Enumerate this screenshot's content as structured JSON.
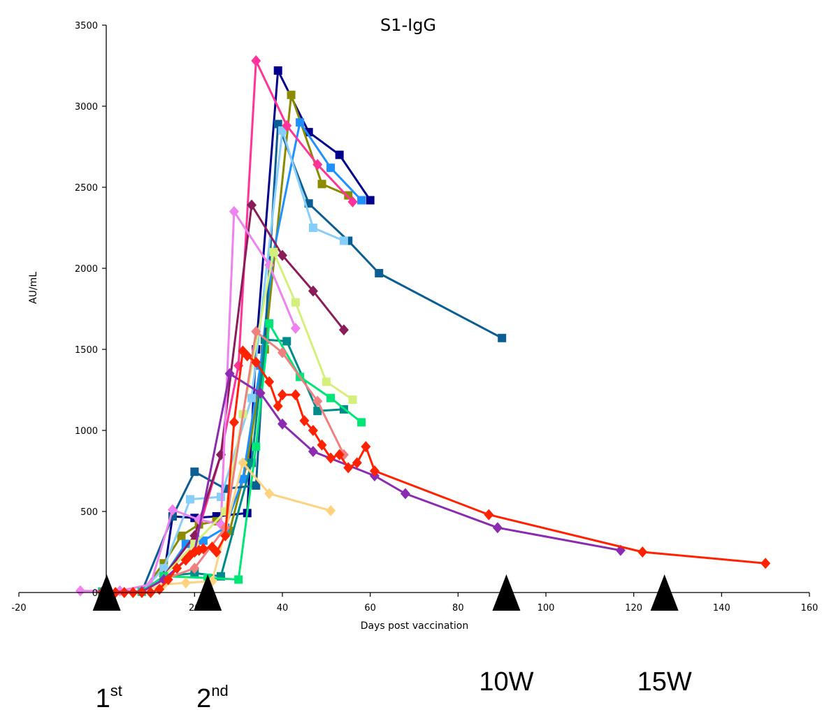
{
  "chart_data": {
    "type": "line",
    "title": "S1-IgG",
    "xlabel": "Days post vaccination",
    "ylabel": "AU/mL",
    "xlim": [
      -20,
      160
    ],
    "ylim": [
      0,
      3500
    ],
    "xticks": [
      -20,
      0,
      20,
      40,
      60,
      80,
      100,
      120,
      140,
      160
    ],
    "yticks": [
      0,
      500,
      1000,
      1500,
      2000,
      2500,
      3000,
      3500
    ],
    "grid": false,
    "legend": "none",
    "series": [
      {
        "color": "#00008B",
        "marker": "square",
        "points": [
          [
            -1,
            5
          ],
          [
            8,
            5
          ],
          [
            13,
            100
          ],
          [
            15,
            470
          ],
          [
            20,
            460
          ],
          [
            25,
            470
          ],
          [
            32,
            490
          ],
          [
            34,
            1500
          ],
          [
            39,
            3220
          ],
          [
            46,
            2840
          ],
          [
            53,
            2700
          ],
          [
            60,
            2420
          ]
        ]
      },
      {
        "color": "#8B8B00",
        "marker": "square",
        "points": [
          [
            -1,
            5
          ],
          [
            8,
            5
          ],
          [
            13,
            180
          ],
          [
            17,
            350
          ],
          [
            21,
            420
          ],
          [
            25,
            440
          ],
          [
            28,
            380
          ],
          [
            32,
            800
          ],
          [
            36,
            1500
          ],
          [
            42,
            3070
          ],
          [
            49,
            2520
          ],
          [
            55,
            2450
          ]
        ]
      },
      {
        "color": "#1E90FF",
        "marker": "square",
        "points": [
          [
            -1,
            5
          ],
          [
            8,
            5
          ],
          [
            13,
            100
          ],
          [
            18,
            300
          ],
          [
            22,
            320
          ],
          [
            27,
            400
          ],
          [
            31,
            700
          ],
          [
            35,
            1400
          ],
          [
            38,
            2100
          ],
          [
            44,
            2900
          ],
          [
            51,
            2620
          ],
          [
            58,
            2420
          ]
        ]
      },
      {
        "color": "#0B5E94",
        "marker": "square",
        "points": [
          [
            -1,
            5
          ],
          [
            8,
            5
          ],
          [
            15,
            470
          ],
          [
            20,
            745
          ],
          [
            27,
            640
          ],
          [
            34,
            660
          ],
          [
            39,
            2890
          ],
          [
            46,
            2400
          ],
          [
            55,
            2170
          ],
          [
            62,
            1970
          ],
          [
            90,
            1570
          ]
        ]
      },
      {
        "color": "#87CEFA",
        "marker": "square",
        "points": [
          [
            -1,
            5
          ],
          [
            8,
            5
          ],
          [
            13,
            150
          ],
          [
            19,
            575
          ],
          [
            26,
            590
          ],
          [
            33,
            1200
          ],
          [
            40,
            2850
          ],
          [
            47,
            2250
          ],
          [
            54,
            2170
          ]
        ]
      },
      {
        "color": "#FF3399",
        "marker": "diamond",
        "points": [
          [
            -1,
            5
          ],
          [
            8,
            5
          ],
          [
            13,
            100
          ],
          [
            20,
            300
          ],
          [
            26,
            850
          ],
          [
            30,
            1400
          ],
          [
            34,
            3280
          ],
          [
            41,
            2880
          ],
          [
            48,
            2640
          ],
          [
            56,
            2410
          ]
        ]
      },
      {
        "color": "#8B1C5A",
        "marker": "diamond",
        "points": [
          [
            -1,
            5
          ],
          [
            8,
            5
          ],
          [
            13,
            100
          ],
          [
            20,
            350
          ],
          [
            26,
            850
          ],
          [
            33,
            2390
          ],
          [
            40,
            2080
          ],
          [
            47,
            1860
          ],
          [
            54,
            1620
          ]
        ]
      },
      {
        "color": "#EE82EE",
        "marker": "diamond",
        "points": [
          [
            -6,
            10
          ],
          [
            3,
            10
          ],
          [
            10,
            50
          ],
          [
            15,
            510
          ],
          [
            21,
            450
          ],
          [
            26,
            420
          ],
          [
            29,
            2350
          ],
          [
            37,
            2020
          ],
          [
            43,
            1630
          ]
        ]
      },
      {
        "color": "#D4F07A",
        "marker": "square",
        "points": [
          [
            -1,
            5
          ],
          [
            8,
            5
          ],
          [
            13,
            100
          ],
          [
            20,
            300
          ],
          [
            27,
            500
          ],
          [
            31,
            1100
          ],
          [
            38,
            2100
          ],
          [
            43,
            1790
          ],
          [
            50,
            1300
          ],
          [
            56,
            1190
          ]
        ]
      },
      {
        "color": "#008B8B",
        "marker": "square",
        "points": [
          [
            -1,
            5
          ],
          [
            8,
            5
          ],
          [
            13,
            100
          ],
          [
            20,
            120
          ],
          [
            26,
            100
          ],
          [
            33,
            800
          ],
          [
            36,
            1560
          ],
          [
            41,
            1550
          ],
          [
            48,
            1120
          ],
          [
            54,
            1130
          ]
        ]
      },
      {
        "color": "#00E676",
        "marker": "square",
        "points": [
          [
            -1,
            5
          ],
          [
            8,
            5
          ],
          [
            13,
            100
          ],
          [
            23,
            90
          ],
          [
            30,
            80
          ],
          [
            34,
            900
          ],
          [
            37,
            1660
          ],
          [
            44,
            1330
          ],
          [
            51,
            1200
          ],
          [
            58,
            1050
          ]
        ]
      },
      {
        "color": "#F08080",
        "marker": "diamond",
        "points": [
          [
            -1,
            5
          ],
          [
            8,
            5
          ],
          [
            13,
            80
          ],
          [
            20,
            150
          ],
          [
            27,
            400
          ],
          [
            34,
            1610
          ],
          [
            40,
            1480
          ],
          [
            48,
            1180
          ],
          [
            54,
            850
          ]
        ]
      },
      {
        "color": "#FFD27F",
        "marker": "diamond",
        "points": [
          [
            -1,
            5
          ],
          [
            8,
            5
          ],
          [
            13,
            50
          ],
          [
            18,
            60
          ],
          [
            24,
            70
          ],
          [
            31,
            800
          ],
          [
            37,
            610
          ],
          [
            51,
            505
          ]
        ]
      },
      {
        "color": "#8B2BB0",
        "marker": "diamond",
        "points": [
          [
            -1,
            5
          ],
          [
            8,
            5
          ],
          [
            13,
            80
          ],
          [
            20,
            250
          ],
          [
            28,
            1350
          ],
          [
            35,
            1230
          ],
          [
            40,
            1040
          ],
          [
            47,
            870
          ],
          [
            61,
            720
          ],
          [
            68,
            610
          ],
          [
            89,
            400
          ],
          [
            117,
            260
          ]
        ]
      },
      {
        "color": "#FF2200",
        "marker": "diamond",
        "points": [
          [
            -1,
            0
          ],
          [
            2,
            0
          ],
          [
            4,
            0
          ],
          [
            6,
            0
          ],
          [
            8,
            0
          ],
          [
            10,
            0
          ],
          [
            12,
            20
          ],
          [
            14,
            80
          ],
          [
            16,
            150
          ],
          [
            18,
            200
          ],
          [
            19,
            230
          ],
          [
            20,
            250
          ],
          [
            21,
            260
          ],
          [
            22,
            270
          ],
          [
            24,
            280
          ],
          [
            25,
            250
          ],
          [
            27,
            350
          ],
          [
            29,
            1050
          ],
          [
            31,
            1490
          ],
          [
            32,
            1460
          ],
          [
            34,
            1420
          ],
          [
            37,
            1300
          ],
          [
            39,
            1150
          ],
          [
            40,
            1220
          ],
          [
            43,
            1220
          ],
          [
            45,
            1060
          ],
          [
            47,
            1000
          ],
          [
            49,
            910
          ],
          [
            51,
            830
          ],
          [
            53,
            850
          ],
          [
            55,
            770
          ],
          [
            57,
            800
          ],
          [
            59,
            900
          ],
          [
            61,
            750
          ],
          [
            87,
            480
          ],
          [
            122,
            250
          ],
          [
            150,
            180
          ]
        ]
      }
    ],
    "dose_markers": [
      {
        "day": 0,
        "label": "1",
        "sup": "st"
      },
      {
        "day": 23,
        "label": "2",
        "sup": "nd"
      },
      {
        "day": 91,
        "label": "10W",
        "sup": ""
      },
      {
        "day": 127,
        "label": "15W",
        "sup": ""
      }
    ]
  }
}
